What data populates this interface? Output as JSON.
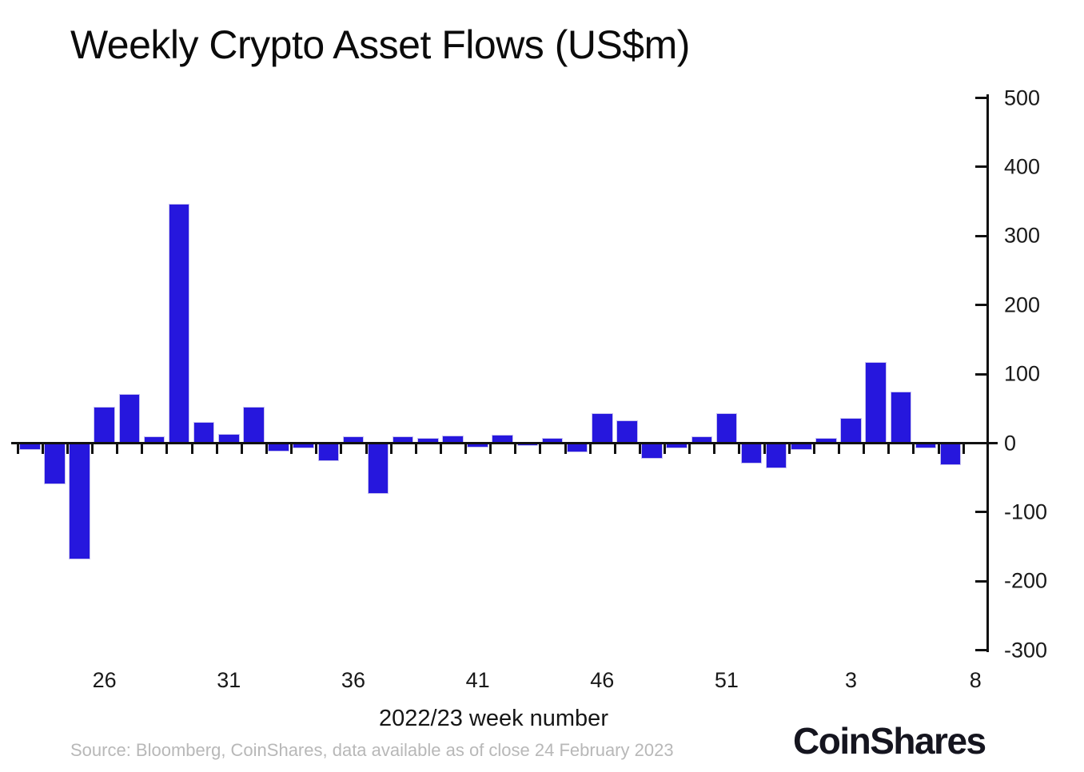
{
  "chart": {
    "title": "Weekly Crypto Asset Flows (US$m)",
    "x_axis_label": "2022/23 week number",
    "source": "Source: Bloomberg, CoinShares, data available as of close 24 February 2023",
    "branding": "CoinShares"
  },
  "chart_data": {
    "type": "bar",
    "title": "Weekly Crypto Asset Flows (US$m)",
    "xlabel": "2022/23 week number",
    "ylabel": "",
    "ylim": [
      -300,
      500
    ],
    "grid": false,
    "legend_position": "none",
    "y_axis_side": "right",
    "y_ticks": [
      500,
      400,
      300,
      200,
      100,
      0,
      -100,
      -200,
      -300
    ],
    "y_tick_labels": [
      "500",
      "400",
      "300",
      "200",
      "100",
      "0",
      "-100",
      "-200",
      "-300"
    ],
    "x_tick_labels": [
      "26",
      "31",
      "36",
      "41",
      "46",
      "51",
      "3",
      "8"
    ],
    "categories": [
      "23",
      "24",
      "25",
      "26",
      "27",
      "28",
      "29",
      "30",
      "31",
      "32",
      "33",
      "34",
      "35",
      "36",
      "37",
      "38",
      "39",
      "40",
      "41",
      "42",
      "43",
      "44",
      "45",
      "46",
      "47",
      "48",
      "49",
      "50",
      "51",
      "52",
      "53",
      "1",
      "2",
      "3",
      "4",
      "5",
      "6",
      "7",
      "8"
    ],
    "values": [
      -10,
      -60,
      -168,
      53,
      71,
      10,
      347,
      31,
      13,
      53,
      -12,
      -8,
      -26,
      10,
      -73,
      10,
      8,
      11,
      -6,
      12,
      -4,
      7,
      -13,
      43,
      33,
      -22,
      -8,
      10,
      43,
      -29,
      -36,
      -10,
      8,
      37,
      117,
      75,
      -7,
      -32,
      0
    ],
    "bar_color": "#2617DD",
    "bar_edge_color": "#c7c2ef",
    "axis_color": "#111111",
    "source": "Source: Bloomberg, CoinShares, data available as of close 24 February 2023",
    "branding": "CoinShares"
  }
}
